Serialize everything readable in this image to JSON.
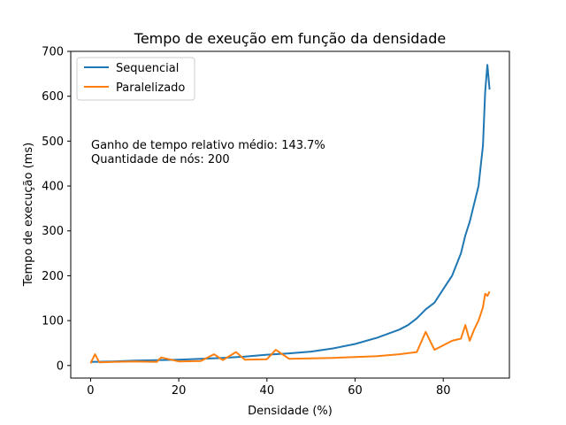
{
  "chart_data": {
    "type": "line",
    "title": "Tempo de exeução em função da densidade",
    "xlabel": "Densidade (%)",
    "ylabel": "Tempo de execução (ms)",
    "xlim": [
      -4.5,
      95
    ],
    "ylim": [
      -28,
      700
    ],
    "xticks": [
      0,
      20,
      40,
      60,
      80
    ],
    "yticks": [
      0,
      100,
      200,
      300,
      400,
      500,
      600,
      700
    ],
    "grid": false,
    "legend": "top-left",
    "annotations": [
      "Ganho de tempo relativo médio: 143.7%",
      "Quantidade de nós: 200"
    ],
    "series": [
      {
        "name": "Sequencial",
        "color": "#1f77b4",
        "points": [
          [
            0,
            8
          ],
          [
            5,
            9
          ],
          [
            10,
            11
          ],
          [
            15,
            12
          ],
          [
            20,
            13
          ],
          [
            25,
            15
          ],
          [
            30,
            17
          ],
          [
            35,
            20
          ],
          [
            40,
            24
          ],
          [
            45,
            27
          ],
          [
            50,
            31
          ],
          [
            55,
            38
          ],
          [
            60,
            48
          ],
          [
            65,
            62
          ],
          [
            70,
            80
          ],
          [
            72,
            90
          ],
          [
            74,
            105
          ],
          [
            76,
            125
          ],
          [
            78,
            140
          ],
          [
            80,
            170
          ],
          [
            82,
            200
          ],
          [
            84,
            250
          ],
          [
            85,
            290
          ],
          [
            86,
            320
          ],
          [
            87,
            360
          ],
          [
            88,
            400
          ],
          [
            89,
            490
          ],
          [
            89.5,
            610
          ],
          [
            90,
            670
          ],
          [
            90.5,
            615
          ]
        ]
      },
      {
        "name": "Paralelizado",
        "color": "#ff7f0e",
        "points": [
          [
            0,
            5
          ],
          [
            1,
            25
          ],
          [
            2,
            7
          ],
          [
            5,
            8
          ],
          [
            10,
            9
          ],
          [
            15,
            8
          ],
          [
            16,
            18
          ],
          [
            20,
            9
          ],
          [
            25,
            10
          ],
          [
            28,
            25
          ],
          [
            30,
            12
          ],
          [
            33,
            30
          ],
          [
            35,
            13
          ],
          [
            40,
            14
          ],
          [
            42,
            35
          ],
          [
            45,
            15
          ],
          [
            50,
            16
          ],
          [
            55,
            17
          ],
          [
            60,
            19
          ],
          [
            65,
            21
          ],
          [
            70,
            25
          ],
          [
            74,
            30
          ],
          [
            76,
            75
          ],
          [
            78,
            35
          ],
          [
            80,
            45
          ],
          [
            82,
            55
          ],
          [
            84,
            60
          ],
          [
            85,
            90
          ],
          [
            86,
            55
          ],
          [
            87,
            80
          ],
          [
            88,
            100
          ],
          [
            89,
            130
          ],
          [
            89.5,
            160
          ],
          [
            90,
            155
          ],
          [
            90.5,
            165
          ]
        ]
      }
    ]
  }
}
